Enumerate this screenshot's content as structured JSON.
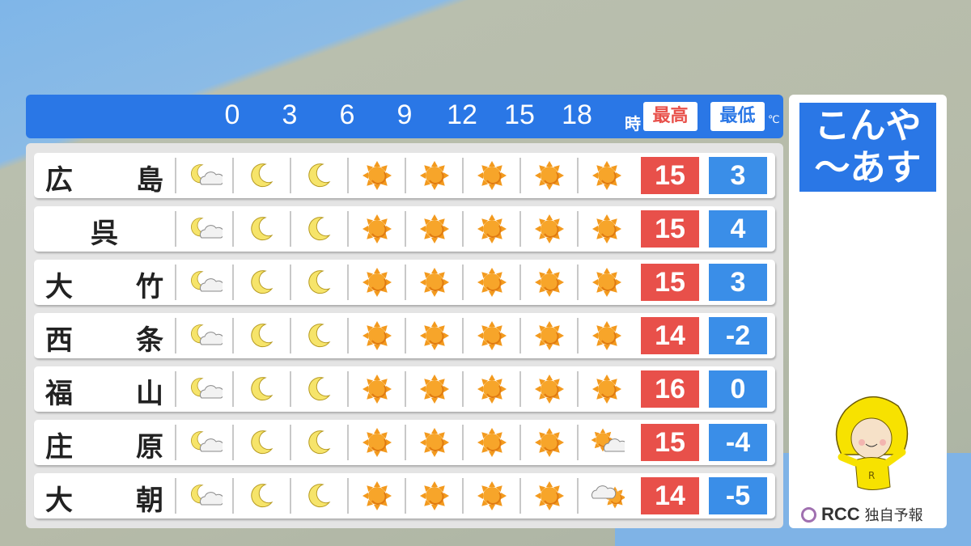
{
  "header": {
    "hours": [
      "0",
      "3",
      "6",
      "9",
      "12",
      "15",
      "18"
    ],
    "hour_unit": "時",
    "high_label": "最高",
    "low_label": "最低",
    "temp_unit": "℃"
  },
  "colors": {
    "header": "#2a77e6",
    "high": "#e8504a",
    "low": "#3a8ee8"
  },
  "rows": [
    {
      "name": [
        "広",
        "島"
      ],
      "icons": [
        "moon-cloud",
        "moon",
        "moon",
        "sun",
        "sun",
        "sun",
        "sun",
        "sun"
      ],
      "high": "15",
      "low": "3"
    },
    {
      "name": [
        "呉"
      ],
      "icons": [
        "moon-cloud",
        "moon",
        "moon",
        "sun",
        "sun",
        "sun",
        "sun",
        "sun"
      ],
      "high": "15",
      "low": "4"
    },
    {
      "name": [
        "大",
        "竹"
      ],
      "icons": [
        "moon-cloud",
        "moon",
        "moon",
        "sun",
        "sun",
        "sun",
        "sun",
        "sun"
      ],
      "high": "15",
      "low": "3"
    },
    {
      "name": [
        "西",
        "条"
      ],
      "icons": [
        "moon-cloud",
        "moon",
        "moon",
        "sun",
        "sun",
        "sun",
        "sun",
        "sun"
      ],
      "high": "14",
      "low": "-2"
    },
    {
      "name": [
        "福",
        "山"
      ],
      "icons": [
        "moon-cloud",
        "moon",
        "moon",
        "sun",
        "sun",
        "sun",
        "sun",
        "sun"
      ],
      "high": "16",
      "low": "0"
    },
    {
      "name": [
        "庄",
        "原"
      ],
      "icons": [
        "moon-cloud",
        "moon",
        "moon",
        "sun",
        "sun",
        "sun",
        "sun",
        "sun-cloud"
      ],
      "high": "15",
      "low": "-4"
    },
    {
      "name": [
        "大",
        "朝"
      ],
      "icons": [
        "moon-cloud",
        "moon",
        "moon",
        "sun",
        "sun",
        "sun",
        "sun",
        "cloud-sun"
      ],
      "high": "14",
      "low": "-5"
    }
  ],
  "side": {
    "title_line1": "こんや",
    "title_line2": "〜あす",
    "logo": "RCC",
    "logo_caption": "独自予報"
  }
}
